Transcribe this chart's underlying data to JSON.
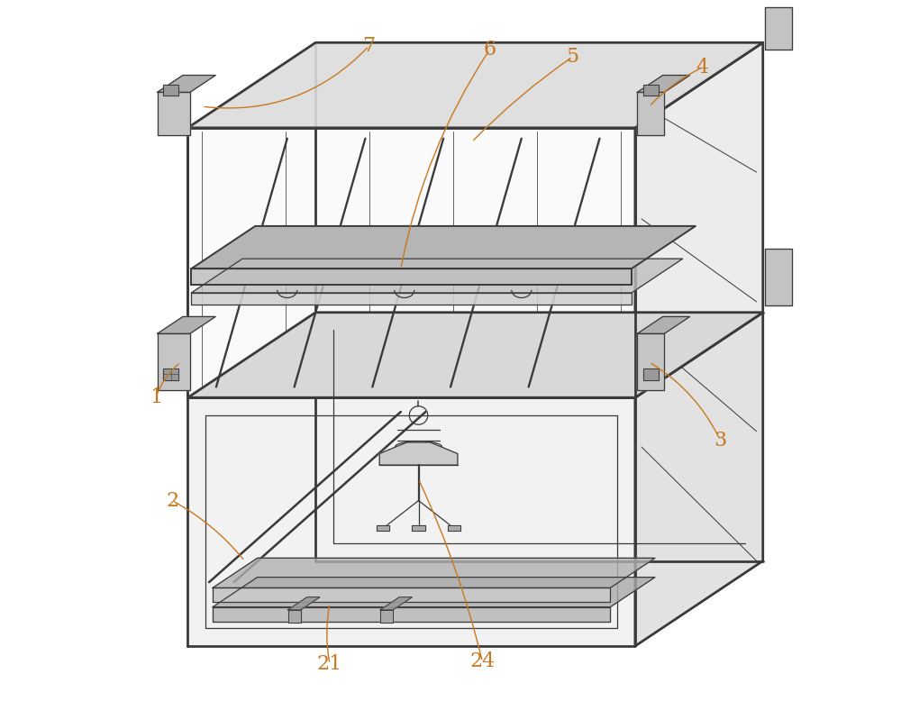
{
  "bg_color": "#ffffff",
  "line_color": "#3a3a3a",
  "label_color": "#c87820",
  "label_fontsize": 16,
  "fig_width": 10.0,
  "fig_height": 7.88,
  "dpi": 100,
  "ox": 0.18,
  "oy": 0.12,
  "fl": 0.13,
  "fr": 0.76,
  "fb": 0.09,
  "ft": 0.82,
  "sep": 0.44
}
